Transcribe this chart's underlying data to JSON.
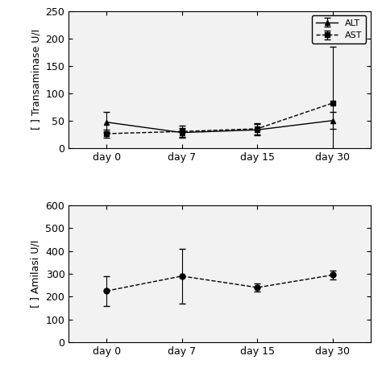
{
  "top": {
    "ylabel": "[ ] Transaminase U/I",
    "ylim": [
      0,
      250
    ],
    "yticks": [
      0,
      50,
      100,
      150,
      200,
      250
    ],
    "xtick_labels": [
      "day 0",
      "day 7",
      "day 15",
      "day 30"
    ],
    "x": [
      0,
      1,
      2,
      3
    ],
    "ALT": {
      "y": [
        47,
        28,
        33,
        50
      ],
      "yerr": [
        18,
        9,
        10,
        15
      ],
      "label": "ALT",
      "marker": "^",
      "color": "black",
      "linestyle": "-"
    },
    "AST": {
      "y": [
        26,
        30,
        35,
        82
      ],
      "yerr": [
        8,
        10,
        10,
        103
      ],
      "label": "AST",
      "marker": "s",
      "color": "black",
      "linestyle": "-"
    }
  },
  "bottom": {
    "ylabel": "[ ] Amilasi U/I",
    "ylim": [
      0,
      600
    ],
    "yticks": [
      0,
      100,
      200,
      300,
      400,
      500,
      600
    ],
    "xtick_labels": [
      "day 0",
      "day 7",
      "day 15",
      "day 30"
    ],
    "x": [
      0,
      1,
      2,
      3
    ],
    "Amilasi": {
      "y": [
        225,
        290,
        240,
        295
      ],
      "yerr": [
        65,
        120,
        18,
        18
      ],
      "label": "Amilasi",
      "marker": "o",
      "color": "black",
      "linestyle": "-"
    }
  },
  "bg_color": "#e8e8e8",
  "plot_bg": "#f0f0f0"
}
